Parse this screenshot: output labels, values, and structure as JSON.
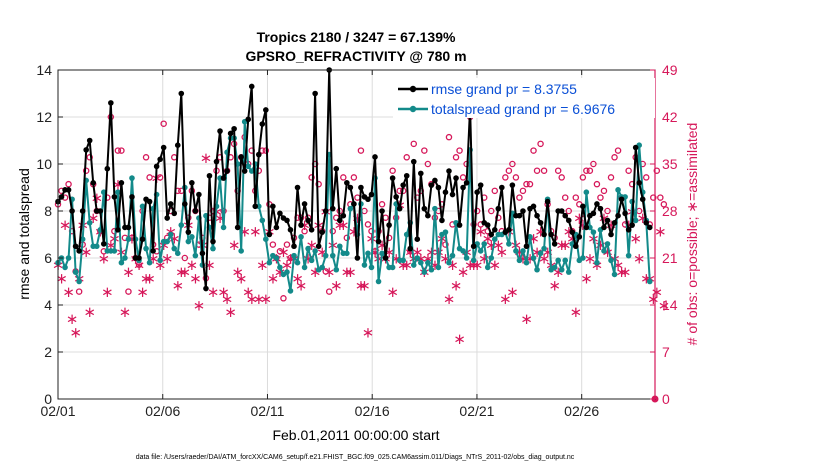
{
  "chart_data": {
    "type": "line",
    "title_line1": "Tropics 2180 / 3247 = 67.139%",
    "title_line2": "GPSRO_REFRACTIVITY @ 780 m",
    "xlabel": "Feb.01,2011 00:00:00 start",
    "ylabel_left": "rmse and totalspread",
    "ylabel_right": "# of obs: o=possible; ∗=assimilated",
    "footnote": "data file: /Users/raeder/DAI/ATM_forcXX/CAM6_setup/f.e21.FHIST_BGC.f09_025.CAM6assim.011/Diags_NTrS_2011-02/obs_diag_output.nc",
    "xlim": [
      0,
      28.5
    ],
    "ylim_left": [
      0,
      14
    ],
    "ylim_right": [
      0,
      49
    ],
    "x_ticks": [
      0,
      5,
      10,
      15,
      20,
      25
    ],
    "x_tick_labels": [
      "02/01",
      "02/06",
      "02/11",
      "02/16",
      "02/21",
      "02/26"
    ],
    "y_left_ticks": [
      "0",
      "2",
      "4",
      "6",
      "8",
      "10",
      "12",
      "14"
    ],
    "y_right_ticks": [
      "0",
      "7",
      "14",
      "21",
      "28",
      "35",
      "42",
      "49"
    ],
    "colors": {
      "rmse": "#000000",
      "spread": "#138a8a",
      "obs": "#d6185a",
      "legend_text": "#0a4fd6",
      "grid": "#dcdcdc"
    },
    "series": [
      {
        "name": "rmse grand pr = 8.3755",
        "axis": "left",
        "values": [
          8.4,
          8.6,
          8.9,
          8.9,
          8.0,
          6.5,
          6.3,
          8.0,
          10.6,
          11.0,
          9.2,
          8.0,
          8.0,
          6.6,
          9.8,
          12.6,
          8.6,
          7.2,
          9.2,
          7.3,
          7.3,
          8.6,
          6.0,
          6.0,
          6.8,
          8.5,
          8.4,
          6.3,
          9.9,
          10.2,
          10.7,
          7.7,
          8.3,
          7.9,
          10.8,
          13.0,
          8.3,
          7.1,
          9.2,
          8.0,
          8.7,
          6.2,
          4.7,
          9.5,
          6.7,
          10.1,
          11.4,
          9.4,
          9.7,
          11.3,
          11.5,
          7.3,
          10.3,
          9.7,
          11.9,
          13.3,
          8.2,
          10.4,
          11.7,
          12.3,
          7.0,
          8.2,
          7.3,
          7.9,
          7.7,
          7.6,
          7.2,
          6.5,
          9.0,
          7.4,
          8.3,
          7.6,
          7.2,
          13.0,
          6.5,
          7.1,
          8.0,
          14.0,
          8.1,
          9.8,
          7.6,
          7.8,
          9.2,
          9.0,
          8.3,
          6.0,
          9.0,
          8.6,
          8.5,
          8.7,
          10.3,
          6.7,
          8.0,
          6.0,
          7.4,
          9.4,
          8.6,
          8.1,
          9.1,
          9.5,
          6.4,
          10.1,
          6.8,
          9.6,
          8.1,
          7.8,
          9.1,
          9.3,
          9.0,
          7.6,
          8.8,
          9.7,
          8.7,
          9.4,
          7.4,
          9.0,
          9.2,
          12.4,
          6.5,
          8.8,
          9.1,
          7.5,
          7.4,
          7.0,
          7.2,
          8.1,
          9.0,
          7.1,
          7.2,
          9.1,
          7.8,
          7.8,
          8.0,
          6.5,
          8.1,
          8.2,
          7.8,
          7.5,
          7.0,
          8.4,
          7.0,
          6.6,
          8.0,
          8.0,
          7.8,
          7.6,
          7.1,
          6.5,
          6.9,
          8.2,
          7.3,
          7.8,
          7.9,
          8.3,
          8.1,
          7.3,
          7.6,
          7.0,
          7.5,
          7.8,
          8.5,
          7.9,
          7.2,
          7.4,
          10.7,
          9.2,
          8.5,
          7.5,
          7.3
        ]
      },
      {
        "name": "totalspread grand pr = 6.9676",
        "axis": "left",
        "values": [
          5.8,
          6.0,
          5.6,
          6.0,
          8.5,
          5.4,
          5.0,
          6.8,
          9.3,
          7.5,
          6.5,
          6.5,
          7.2,
          8.8,
          6.3,
          6.3,
          6.3,
          8.8,
          5.8,
          6.0,
          6.8,
          9.4,
          6.8,
          5.9,
          8.2,
          6.4,
          5.8,
          8.1,
          8.7,
          5.9,
          6.7,
          6.7,
          7.0,
          6.4,
          6.2,
          7.4,
          9.0,
          6.7,
          6.9,
          6.1,
          7.7,
          5.7,
          7.8,
          7.3,
          6.4,
          8.2,
          9.4,
          7.3,
          10.5,
          11.1,
          11.1,
          10.0,
          6.3,
          11.8,
          9.9,
          9.7,
          10.0,
          8.2,
          7.6,
          6.8,
          5.8,
          6.1,
          6.0,
          5.6,
          5.3,
          5.4,
          4.6,
          6.1,
          5.8,
          6.9,
          5.6,
          6.4,
          5.9,
          6.3,
          5.5,
          5.6,
          6.1,
          10.4,
          6.1,
          5.5,
          6.5,
          6.2,
          6.2,
          8.1,
          8.3,
          7.0,
          8.3,
          5.7,
          6.2,
          5.6,
          9.4,
          5.0,
          6.2,
          6.0,
          5.6,
          5.6,
          8.3,
          5.9,
          5.9,
          7.0,
          7.5,
          5.7,
          6.0,
          5.8,
          5.4,
          5.8,
          5.5,
          8.1,
          5.6,
          7.0,
          7.1,
          5.8,
          6.1,
          7.5,
          6.4,
          6.3,
          6.0,
          10.6,
          5.9,
          6.6,
          6.3,
          6.6,
          5.6,
          6.0,
          6.8,
          7.0,
          7.0,
          7.1,
          6.6,
          7.9,
          6.3,
          5.9,
          6.3,
          5.8,
          6.9,
          6.0,
          5.5,
          6.2,
          6.4,
          8.5,
          5.5,
          5.6,
          5.9,
          5.5,
          5.9,
          5.4,
          6.6,
          7.0,
          5.9,
          6.0,
          8.8,
          7.3,
          7.1,
          5.8,
          7.2,
          6.3,
          6.6,
          5.9,
          5.3,
          8.9,
          8.6,
          8.6,
          6.1,
          8.4,
          7.6,
          10.8,
          8.8,
          7.6,
          5.0
        ]
      }
    ],
    "possible_obs": [
      29,
      31,
      30,
      32,
      25,
      19,
      16,
      23,
      34,
      36,
      32,
      28,
      25,
      22,
      30,
      42,
      25,
      37,
      37,
      24,
      16,
      24,
      21,
      20,
      28,
      36,
      33,
      23,
      22,
      33,
      41,
      24,
      28,
      36,
      31,
      31,
      21,
      27,
      31,
      28,
      23,
      24,
      18,
      27,
      28,
      34,
      36,
      28,
      34,
      36,
      38,
      31,
      36,
      39,
      35,
      37,
      31,
      34,
      37,
      37,
      29,
      23,
      21,
      22,
      15,
      23,
      21,
      24,
      27,
      27,
      25,
      27,
      33,
      35,
      32,
      25,
      19,
      16,
      25,
      27,
      28,
      33,
      24,
      29,
      33,
      30,
      37,
      28,
      26,
      25,
      22,
      25,
      29,
      27,
      24,
      34,
      27,
      31,
      31,
      36,
      22,
      38,
      30,
      31,
      37,
      35,
      32,
      27,
      28,
      29,
      23,
      39,
      26,
      36,
      37,
      33,
      35,
      42,
      26,
      28,
      26,
      30,
      25,
      28,
      31,
      27,
      25,
      33,
      34,
      35,
      33,
      30,
      31,
      32,
      32,
      37,
      34,
      38,
      34,
      29,
      25,
      24,
      34,
      33,
      30,
      28,
      25,
      30,
      29,
      33,
      34,
      34,
      35,
      32,
      30,
      31,
      28,
      33,
      36,
      37,
      30,
      26,
      34,
      32,
      36,
      28,
      35,
      33,
      26,
      30,
      34,
      30,
      29
    ],
    "assimilated_obs": [
      20,
      18,
      26,
      16,
      12,
      10,
      18,
      26,
      22,
      13,
      27,
      30,
      25,
      21,
      16,
      23,
      24,
      32,
      22,
      13,
      19,
      24,
      21,
      20,
      16,
      18,
      18,
      21,
      33,
      20,
      23,
      21,
      25,
      24,
      17,
      19,
      19,
      26,
      20,
      18,
      14,
      23,
      36,
      20,
      16,
      28,
      27,
      16,
      15,
      13,
      23,
      19,
      18,
      25,
      16,
      15,
      25,
      15,
      20,
      15,
      25,
      18,
      21,
      19,
      22,
      20,
      21,
      21,
      18,
      17,
      26,
      21,
      23,
      19,
      26,
      22,
      28,
      19,
      23,
      17,
      26,
      26,
      19,
      19,
      25,
      27,
      17,
      17,
      10,
      24,
      22,
      21,
      23,
      21,
      22,
      16,
      21,
      29,
      20,
      20,
      22,
      21,
      22,
      21,
      19,
      21,
      22,
      20,
      22,
      24,
      21,
      15,
      20,
      17,
      9,
      19,
      22,
      20,
      20,
      20,
      25,
      21,
      24,
      23,
      20,
      23,
      22,
      15,
      25,
      16,
      23,
      22,
      21,
      12,
      21,
      24,
      22,
      25,
      21,
      22,
      20,
      17,
      19,
      23,
      23,
      25,
      24,
      13,
      27,
      26,
      18,
      21,
      24,
      20,
      23,
      27,
      22,
      26,
      21,
      20,
      19,
      19,
      26,
      28,
      24,
      21,
      27,
      18,
      18,
      15,
      16,
      25,
      14
    ]
  }
}
